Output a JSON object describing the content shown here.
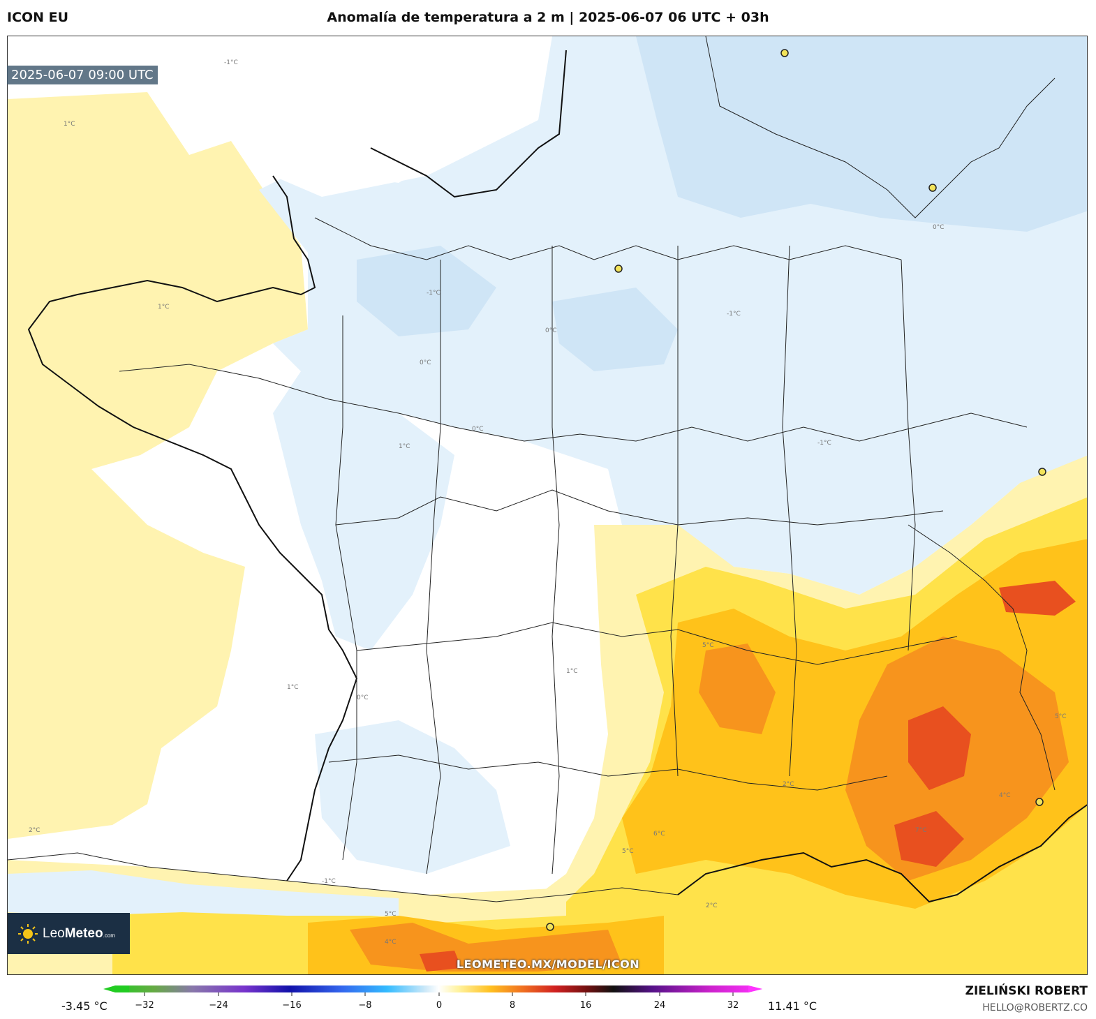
{
  "header": {
    "model": "ICON EU",
    "title": "Anomalía de temperatura a 2 m | 2025-06-07 06 UTC + 03h"
  },
  "map": {
    "valid_time": "2025-06-07 09:00 UTC",
    "watermark": "LEOMETEO.MX/MODEL/ICON",
    "contour_labels": [
      "-1°C",
      "0°C",
      "1°C",
      "2°C",
      "5°C",
      "6°C",
      "7°C",
      "4°C"
    ],
    "colors": {
      "anom_neg_1": "#e3f1fb",
      "anom_neg_2": "#cfe5f6",
      "anom_pos_1": "#fff3b0",
      "anom_pos_2": "#ffe24a",
      "anom_pos_3": "#ffc21a",
      "anom_pos_4": "#f7941d",
      "anom_pos_5": "#e8501f"
    }
  },
  "logo": {
    "brand_light": "Leo",
    "brand_bold": "Meteo",
    "brand_suffix": ".com"
  },
  "colorbar": {
    "min_label": "-3.45 °C",
    "max_label": "11.41 °C",
    "ticks": [
      "−32",
      "−24",
      "−16",
      "−8",
      "0",
      "8",
      "16",
      "24",
      "32"
    ]
  },
  "credits": {
    "author": "ZIELIŃSKI ROBERT",
    "email": "HELLO@ROBERTZ.CO"
  }
}
